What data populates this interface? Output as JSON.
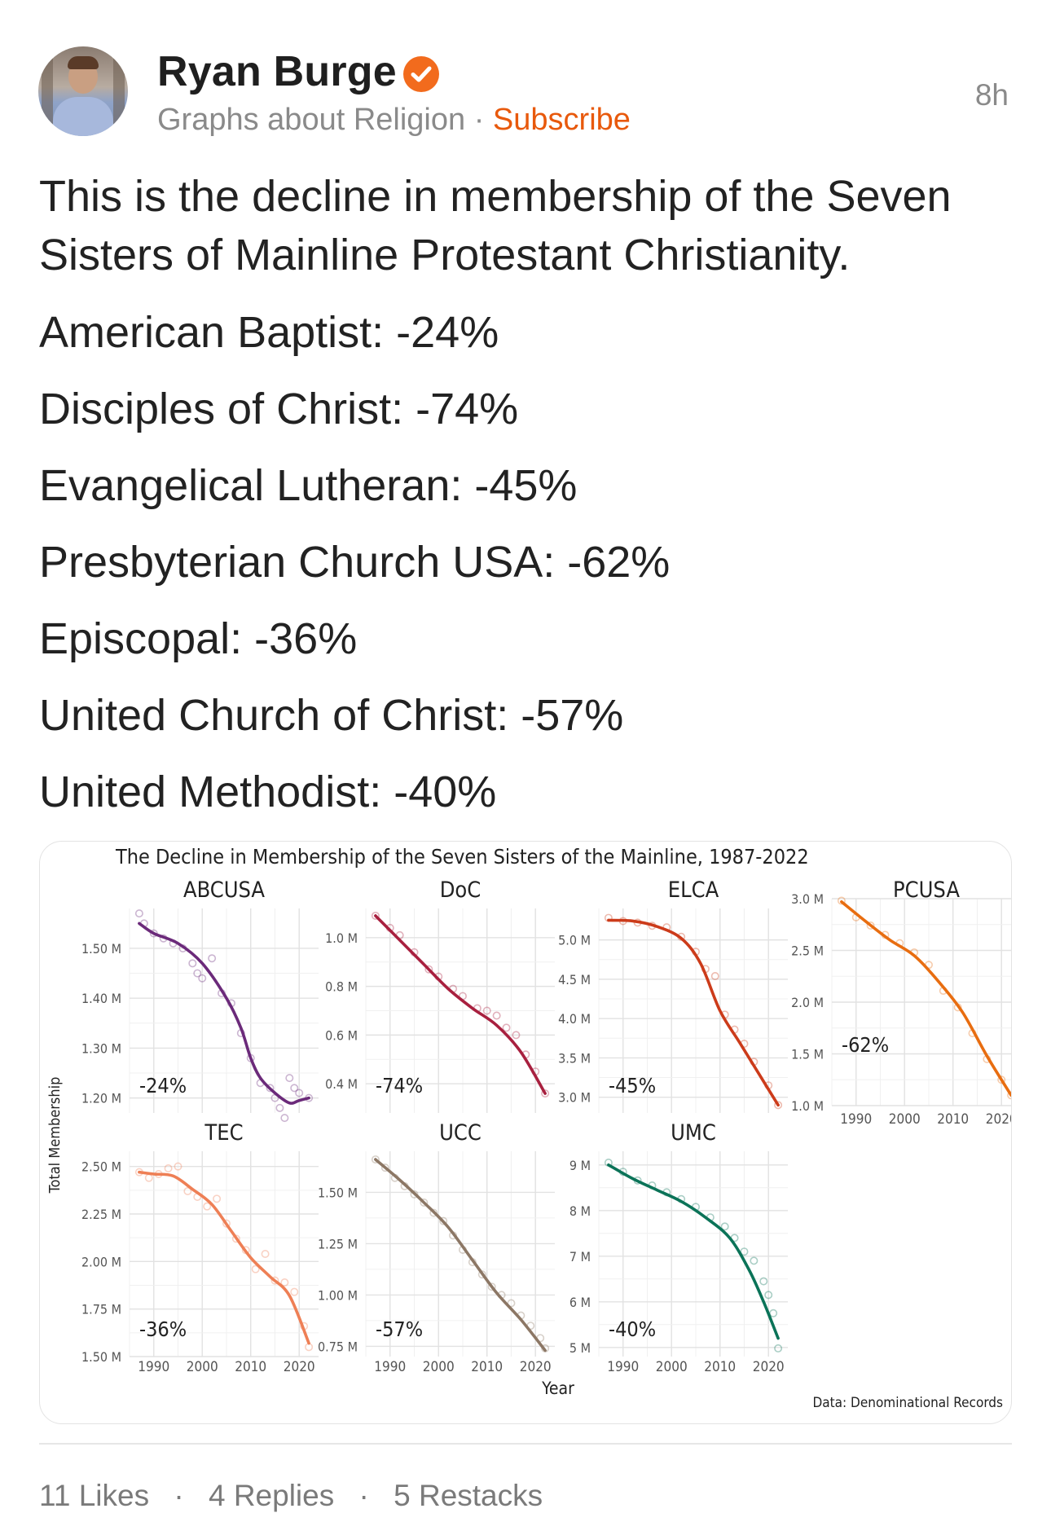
{
  "post": {
    "author": "Ryan Burge",
    "publication": "Graphs about Religion",
    "separator": "·",
    "subscribe": "Subscribe",
    "time": "8h",
    "intro": "This is the decline in membership of the Seven Sisters of Mainline Protestant Christianity.",
    "items": [
      "American Baptist: -24%",
      "Disciples of Christ: -74%",
      "Evangelical Lutheran: -45%",
      "Presbyterian Church USA: -62%",
      "Episcopal: -36%",
      "United Church of Christ: -57%",
      "United Methodist: -40%"
    ]
  },
  "footer": {
    "likes": "11 Likes",
    "dot": "·",
    "replies": "4 Replies",
    "restacks": "5 Restacks"
  },
  "colors": {
    "accent": "#e8590c",
    "verified_badge": "#f26b1d"
  },
  "chart_data": {
    "type": "line",
    "title": "The Decline in Membership of the Seven Sisters of the Mainline, 1987-2022",
    "xlabel": "Year",
    "ylabel": "Total Membership",
    "caption": "Data: Denominational Records",
    "grid": true,
    "x_ticks": [
      "1990",
      "2000",
      "2010",
      "2020"
    ],
    "xlim": [
      1985,
      2024
    ],
    "panels": [
      {
        "name": "ABCUSA",
        "color": "#6b2a7a",
        "change": "-24%",
        "ylim": [
          1.17,
          1.58
        ],
        "y_ticks": [
          1.2,
          1.3,
          1.4,
          1.5
        ],
        "y_tick_labels": [
          "1.20 M",
          "1.30 M",
          "1.40 M",
          "1.50 M"
        ],
        "years": [
          1987,
          1990,
          1995,
          2000,
          2005,
          2008,
          2010,
          2012,
          2015,
          2018,
          2020,
          2022
        ],
        "values": [
          1.55,
          1.53,
          1.51,
          1.47,
          1.4,
          1.34,
          1.28,
          1.24,
          1.21,
          1.19,
          1.195,
          1.2
        ],
        "points": [
          [
            1987,
            1.57
          ],
          [
            1988,
            1.55
          ],
          [
            1990,
            1.53
          ],
          [
            1992,
            1.52
          ],
          [
            1994,
            1.51
          ],
          [
            1996,
            1.5
          ],
          [
            1998,
            1.47
          ],
          [
            1999,
            1.45
          ],
          [
            2000,
            1.44
          ],
          [
            2002,
            1.48
          ],
          [
            2004,
            1.41
          ],
          [
            2006,
            1.39
          ],
          [
            2008,
            1.33
          ],
          [
            2010,
            1.28
          ],
          [
            2012,
            1.23
          ],
          [
            2014,
            1.22
          ],
          [
            2015,
            1.2
          ],
          [
            2016,
            1.18
          ],
          [
            2017,
            1.16
          ],
          [
            2018,
            1.24
          ],
          [
            2019,
            1.22
          ],
          [
            2020,
            1.21
          ],
          [
            2022,
            1.2
          ]
        ]
      },
      {
        "name": "DoC",
        "color": "#a8203f",
        "change": "-74%",
        "ylim": [
          0.28,
          1.12
        ],
        "y_ticks": [
          0.4,
          0.6,
          0.8,
          1.0
        ],
        "y_tick_labels": [
          "0.4 M",
          "0.6 M",
          "0.8 M",
          "1.0 M"
        ],
        "years": [
          1987,
          1992,
          1997,
          2002,
          2007,
          2012,
          2017,
          2022
        ],
        "values": [
          1.09,
          0.99,
          0.89,
          0.79,
          0.71,
          0.64,
          0.53,
          0.36
        ],
        "points": [
          [
            1987,
            1.09
          ],
          [
            1990,
            1.04
          ],
          [
            1992,
            1.01
          ],
          [
            1995,
            0.94
          ],
          [
            1998,
            0.87
          ],
          [
            2000,
            0.84
          ],
          [
            2003,
            0.79
          ],
          [
            2005,
            0.76
          ],
          [
            2008,
            0.71
          ],
          [
            2010,
            0.7
          ],
          [
            2012,
            0.68
          ],
          [
            2014,
            0.63
          ],
          [
            2016,
            0.6
          ],
          [
            2018,
            0.52
          ],
          [
            2020,
            0.45
          ],
          [
            2022,
            0.36
          ]
        ]
      },
      {
        "name": "ELCA",
        "color": "#cc3b1a",
        "change": "-45%",
        "ylim": [
          2.8,
          5.4
        ],
        "y_ticks": [
          3.0,
          3.5,
          4.0,
          4.5,
          5.0
        ],
        "y_tick_labels": [
          "3.0 M",
          "3.5 M",
          "4.0 M",
          "4.5 M",
          "5.0 M"
        ],
        "years": [
          1987,
          1992,
          1997,
          2002,
          2006,
          2010,
          2014,
          2018,
          2022
        ],
        "values": [
          5.25,
          5.24,
          5.17,
          5.02,
          4.7,
          4.1,
          3.7,
          3.3,
          2.9
        ],
        "points": [
          [
            1987,
            5.28
          ],
          [
            1990,
            5.24
          ],
          [
            1993,
            5.22
          ],
          [
            1996,
            5.18
          ],
          [
            1999,
            5.16
          ],
          [
            2002,
            5.04
          ],
          [
            2005,
            4.85
          ],
          [
            2007,
            4.63
          ],
          [
            2009,
            4.54
          ],
          [
            2011,
            4.05
          ],
          [
            2013,
            3.86
          ],
          [
            2015,
            3.68
          ],
          [
            2017,
            3.45
          ],
          [
            2020,
            3.15
          ],
          [
            2022,
            2.9
          ]
        ]
      },
      {
        "name": "PCUSA",
        "color": "#e86d10",
        "change": "-62%",
        "ylim": [
          1.0,
          3.0
        ],
        "y_ticks": [
          1.0,
          1.5,
          2.0,
          2.5,
          3.0
        ],
        "y_tick_labels": [
          "1.0 M",
          "1.5 M",
          "2.0 M",
          "2.5 M",
          "3.0 M"
        ],
        "years": [
          1987,
          1992,
          1997,
          2002,
          2007,
          2012,
          2017,
          2022
        ],
        "values": [
          2.97,
          2.78,
          2.6,
          2.45,
          2.2,
          1.9,
          1.48,
          1.1
        ],
        "points": [
          [
            1987,
            2.98
          ],
          [
            1990,
            2.82
          ],
          [
            1993,
            2.74
          ],
          [
            1996,
            2.65
          ],
          [
            1999,
            2.57
          ],
          [
            2002,
            2.48
          ],
          [
            2005,
            2.36
          ],
          [
            2008,
            2.11
          ],
          [
            2011,
            1.95
          ],
          [
            2014,
            1.7
          ],
          [
            2017,
            1.45
          ],
          [
            2020,
            1.25
          ],
          [
            2022,
            1.1
          ]
        ]
      },
      {
        "name": "TEC",
        "color": "#ee7f55",
        "change": "-36%",
        "ylim": [
          1.5,
          2.58
        ],
        "y_ticks": [
          1.5,
          1.75,
          2.0,
          2.25,
          2.5
        ],
        "y_tick_labels": [
          "1.50 M",
          "1.75 M",
          "2.00 M",
          "2.25 M",
          "2.50 M"
        ],
        "years": [
          1987,
          1990,
          1994,
          1998,
          2002,
          2006,
          2010,
          2014,
          2018,
          2022
        ],
        "values": [
          2.47,
          2.46,
          2.45,
          2.38,
          2.3,
          2.16,
          2.02,
          1.92,
          1.82,
          1.57
        ],
        "points": [
          [
            1987,
            2.47
          ],
          [
            1989,
            2.44
          ],
          [
            1991,
            2.46
          ],
          [
            1993,
            2.49
          ],
          [
            1995,
            2.5
          ],
          [
            1997,
            2.37
          ],
          [
            1999,
            2.34
          ],
          [
            2001,
            2.29
          ],
          [
            2003,
            2.33
          ],
          [
            2005,
            2.2
          ],
          [
            2007,
            2.12
          ],
          [
            2009,
            2.06
          ],
          [
            2011,
            1.96
          ],
          [
            2013,
            2.04
          ],
          [
            2015,
            1.9
          ],
          [
            2017,
            1.89
          ],
          [
            2019,
            1.84
          ],
          [
            2021,
            1.66
          ],
          [
            2022,
            1.55
          ]
        ]
      },
      {
        "name": "UCC",
        "color": "#8c7765",
        "change": "-57%",
        "ylim": [
          0.7,
          1.7
        ],
        "y_ticks": [
          0.75,
          1.0,
          1.25,
          1.5
        ],
        "y_tick_labels": [
          "0.75 M",
          "1.00 M",
          "1.25 M",
          "1.50 M"
        ],
        "years": [
          1987,
          1992,
          1997,
          2002,
          2007,
          2012,
          2017,
          2022
        ],
        "values": [
          1.66,
          1.56,
          1.45,
          1.33,
          1.17,
          1.01,
          0.88,
          0.73
        ],
        "points": [
          [
            1987,
            1.66
          ],
          [
            1989,
            1.62
          ],
          [
            1991,
            1.57
          ],
          [
            1993,
            1.53
          ],
          [
            1995,
            1.49
          ],
          [
            1997,
            1.45
          ],
          [
            1999,
            1.4
          ],
          [
            2001,
            1.36
          ],
          [
            2003,
            1.29
          ],
          [
            2005,
            1.22
          ],
          [
            2007,
            1.16
          ],
          [
            2009,
            1.1
          ],
          [
            2011,
            1.04
          ],
          [
            2013,
            1.0
          ],
          [
            2015,
            0.96
          ],
          [
            2017,
            0.9
          ],
          [
            2019,
            0.85
          ],
          [
            2021,
            0.79
          ],
          [
            2022,
            0.74
          ]
        ]
      },
      {
        "name": "UMC",
        "color": "#0b7358",
        "change": "-40%",
        "ylim": [
          4.8,
          9.3
        ],
        "y_ticks": [
          5,
          6,
          7,
          8,
          9
        ],
        "y_tick_labels": [
          "5 M",
          "6 M",
          "7 M",
          "8 M",
          "9 M"
        ],
        "years": [
          1987,
          1992,
          1997,
          2002,
          2007,
          2012,
          2016,
          2019,
          2022
        ],
        "values": [
          9.0,
          8.7,
          8.45,
          8.2,
          7.85,
          7.4,
          6.7,
          6.0,
          5.2
        ],
        "points": [
          [
            1987,
            9.05
          ],
          [
            1990,
            8.85
          ],
          [
            1993,
            8.66
          ],
          [
            1996,
            8.55
          ],
          [
            1999,
            8.4
          ],
          [
            2002,
            8.25
          ],
          [
            2005,
            8.08
          ],
          [
            2008,
            7.85
          ],
          [
            2011,
            7.65
          ],
          [
            2013,
            7.4
          ],
          [
            2015,
            7.1
          ],
          [
            2017,
            6.9
          ],
          [
            2019,
            6.45
          ],
          [
            2020,
            6.15
          ],
          [
            2021,
            5.75
          ],
          [
            2022,
            4.98
          ]
        ]
      }
    ]
  }
}
